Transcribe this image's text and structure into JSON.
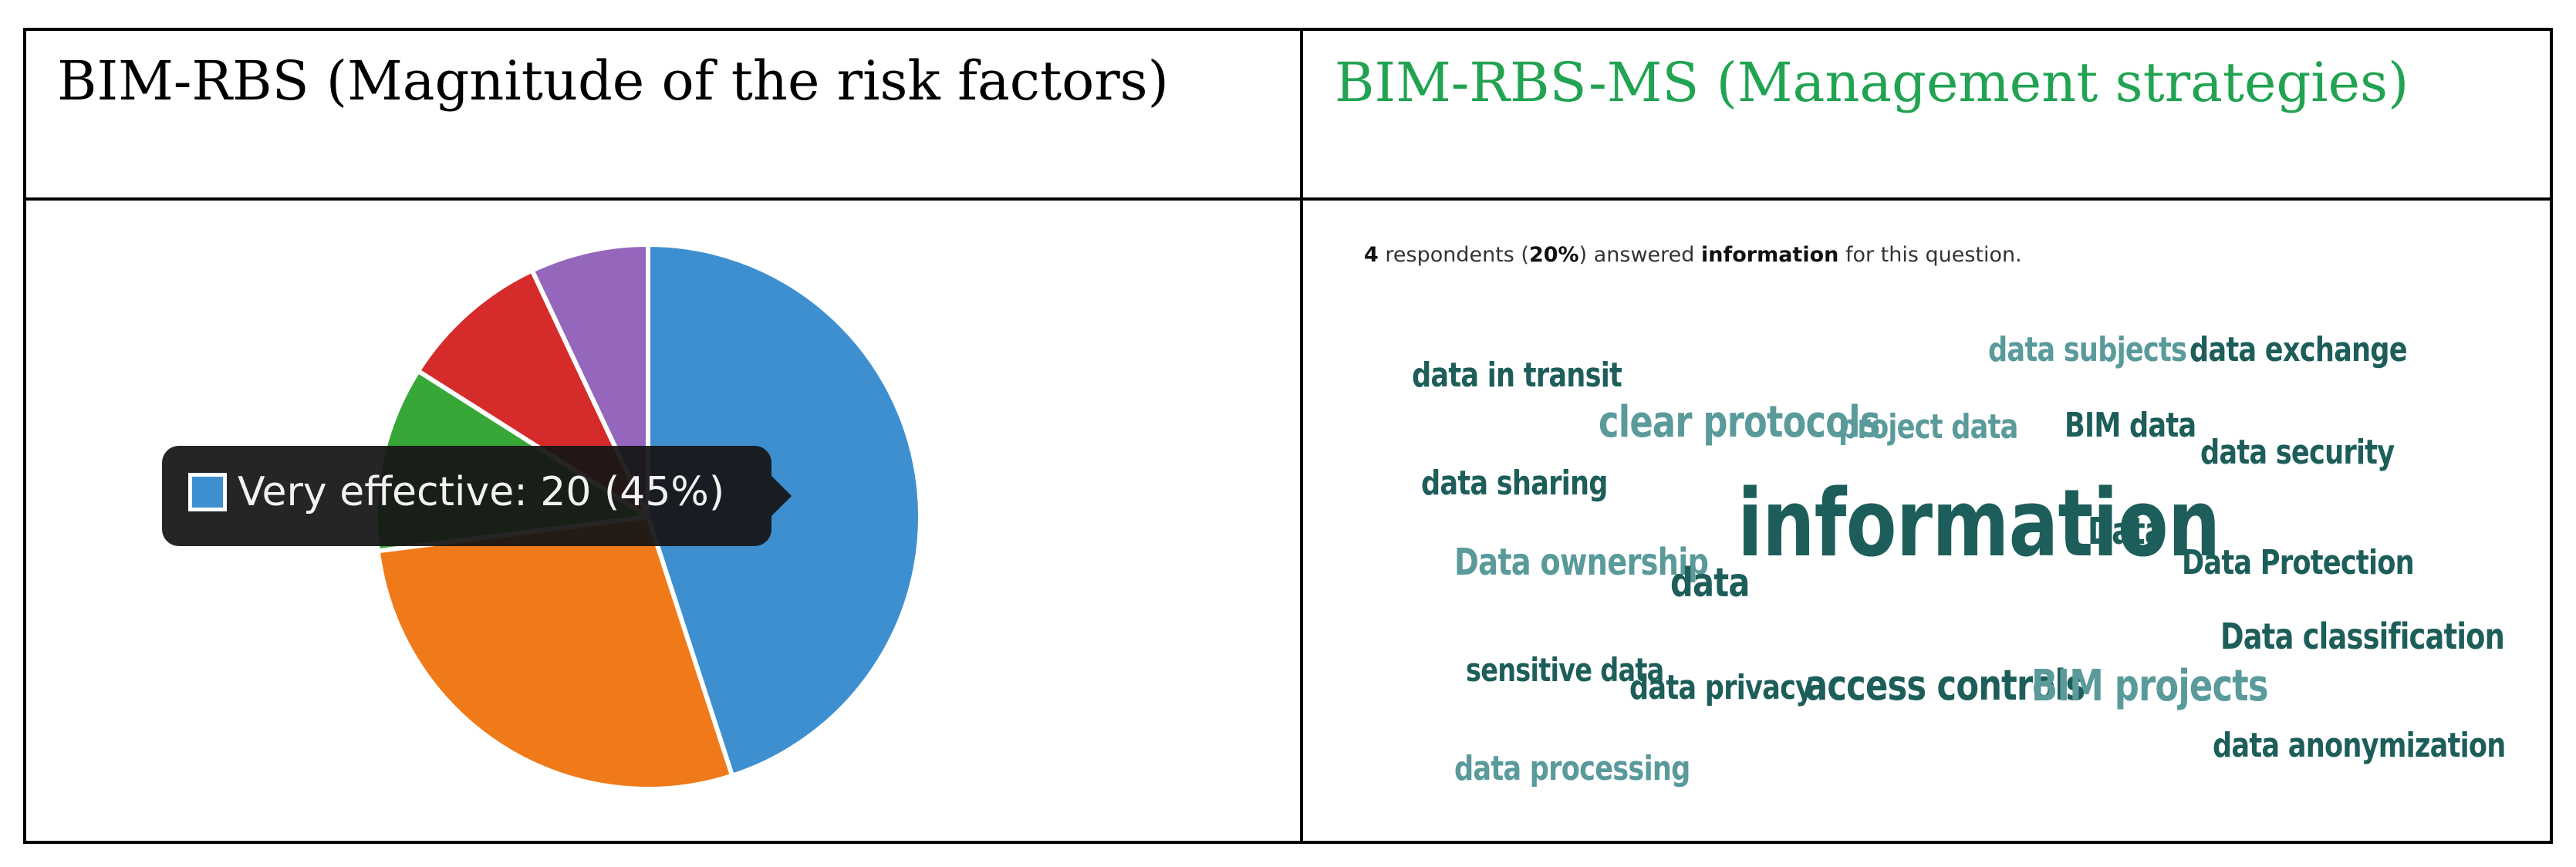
{
  "header": {
    "left": "BIM-RBS (Magnitude of the risk factors)",
    "right": "BIM-RBS-MS (Management strategies)"
  },
  "colors": {
    "header_right": "#21a352",
    "cloud_dark": "#1d5e5a",
    "cloud_light": "#5a9a9a"
  },
  "chart_data": {
    "type": "pie",
    "slices": [
      {
        "value": 45,
        "color": "#3e8fd0"
      },
      {
        "value": 28,
        "color": "#f07a1a"
      },
      {
        "value": 11,
        "color": "#37a737"
      },
      {
        "value": 9,
        "color": "#d62b2b"
      },
      {
        "value": 7,
        "color": "#9467bd"
      }
    ]
  },
  "tooltip": {
    "text": "Very effective: 20 (45%)"
  },
  "respondents": {
    "count": "4",
    "text1": " respondents (",
    "percent": "20%",
    "text2": ") answered ",
    "word": "information",
    "text3": " for this question."
  },
  "word_cloud": {
    "words": [
      {
        "text": "data in transit",
        "tone": "dark"
      },
      {
        "text": "clear protocols",
        "tone": "light"
      },
      {
        "text": "project data",
        "tone": "light"
      },
      {
        "text": "data subjects",
        "tone": "light"
      },
      {
        "text": "data exchange",
        "tone": "dark"
      },
      {
        "text": "BIM data",
        "tone": "dark"
      },
      {
        "text": "data security",
        "tone": "dark"
      },
      {
        "text": "data sharing",
        "tone": "dark"
      },
      {
        "text": "information",
        "tone": "dark"
      },
      {
        "text": "Data",
        "tone": "dark"
      },
      {
        "text": "Data ownership",
        "tone": "light"
      },
      {
        "text": "data",
        "tone": "dark"
      },
      {
        "text": "Data Protection",
        "tone": "dark"
      },
      {
        "text": "Data classification",
        "tone": "dark"
      },
      {
        "text": "sensitive data",
        "tone": "dark"
      },
      {
        "text": "data privacy",
        "tone": "dark"
      },
      {
        "text": "access controls",
        "tone": "dark"
      },
      {
        "text": "BIM projects",
        "tone": "light"
      },
      {
        "text": "data anonymization",
        "tone": "dark"
      },
      {
        "text": "data processing",
        "tone": "light"
      }
    ]
  }
}
